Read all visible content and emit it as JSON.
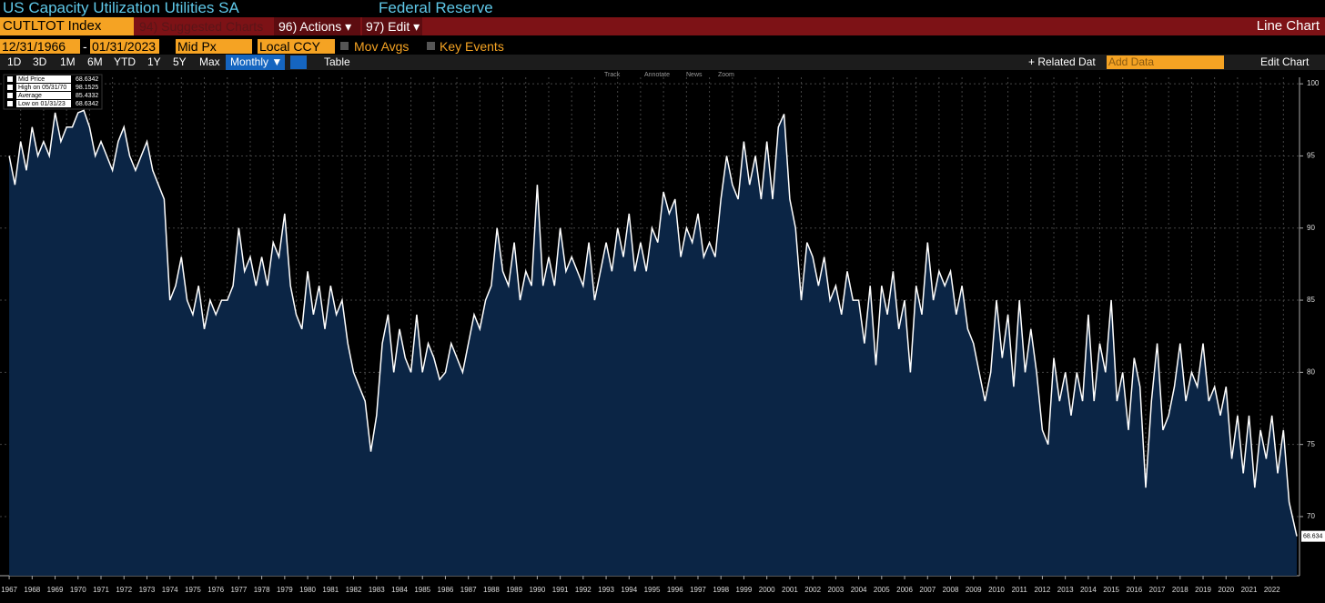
{
  "header": {
    "title": "US Capacity Utilization Utilities SA",
    "source": "Federal Reserve"
  },
  "toolbar": {
    "ticker": "CUTLTOT Index",
    "suggested": "94) Suggested Charts",
    "actions": "96) Actions ▾",
    "edit": "97) Edit ▾",
    "chart_type": "Line Chart"
  },
  "controls": {
    "start": "12/31/1966",
    "separator": "-",
    "end": "01/31/2023",
    "price": "Mid Px",
    "currency": "Local CCY",
    "mov_avgs": "Mov Avgs",
    "key_events": "Key Events"
  },
  "periods": [
    "1D",
    "3D",
    "1M",
    "6M",
    "YTD",
    "1Y",
    "5Y",
    "Max"
  ],
  "frequency": "Monthly ▼",
  "table": "Table",
  "related": "+ Related Dat",
  "add_data": "Add Data",
  "edit_chart": "Edit Chart",
  "chart_tools": [
    "Track",
    "Annotate",
    "News",
    "Zoom"
  ],
  "chart_data": {
    "type": "line",
    "grid": true,
    "fill": "#0b2545",
    "series": [
      {
        "name": "Mid Price",
        "color": "#ffffff",
        "values": [
          95,
          93,
          96,
          94,
          97,
          95,
          96,
          95,
          98,
          96,
          97,
          97,
          98,
          98.1525,
          97,
          95,
          96,
          95,
          94,
          96,
          97,
          95,
          94,
          95,
          96,
          94,
          93,
          92,
          85,
          86,
          88,
          85,
          84,
          86,
          83,
          85,
          84,
          85,
          85,
          86,
          90,
          87,
          88,
          86,
          88,
          86,
          89,
          88,
          91,
          86,
          84,
          83,
          87,
          84,
          86,
          83,
          86,
          84,
          85,
          82,
          80,
          79,
          78,
          74.5,
          77,
          82,
          84,
          80,
          83,
          81,
          80,
          84,
          80,
          82,
          81,
          79.5,
          80,
          82,
          81,
          80,
          82,
          84,
          83,
          85,
          86,
          90,
          87,
          86,
          89,
          85,
          87,
          86,
          93,
          86,
          88,
          86,
          90,
          87,
          88,
          87,
          86,
          89,
          85,
          87,
          89,
          87,
          90,
          88,
          91,
          87,
          89,
          87,
          90,
          89,
          92.5,
          91,
          92,
          88,
          90,
          89,
          91,
          88,
          89,
          88,
          92,
          95,
          93,
          92,
          96,
          93,
          95,
          92,
          96,
          92,
          97,
          97.9,
          92,
          90,
          85,
          89,
          88,
          86,
          88,
          85,
          86,
          84,
          87,
          85,
          85,
          82,
          86,
          80.5,
          86,
          84,
          87,
          83,
          85,
          80,
          86,
          84,
          89,
          85,
          87,
          86,
          87,
          84,
          86,
          83,
          82,
          80,
          78,
          80,
          85,
          81,
          84,
          79,
          85,
          80,
          83,
          80,
          76,
          75,
          81,
          78,
          80,
          77,
          80,
          78,
          84,
          78,
          82,
          80,
          85,
          78,
          80,
          76,
          81,
          79,
          72,
          78,
          82,
          76,
          77,
          79,
          82,
          78,
          80,
          79,
          82,
          78,
          79,
          77,
          79,
          74,
          77,
          73,
          77,
          72,
          76,
          74,
          77,
          73,
          76,
          71,
          68.6342
        ]
      }
    ],
    "x": [
      1967,
      1967.25,
      1967.5,
      1967.75,
      1968,
      1968.25,
      1968.5,
      1968.75,
      1969,
      1969.25,
      1969.5,
      1969.75,
      1970,
      1970.25,
      1970.5,
      1970.75,
      1971,
      1971.25,
      1971.5,
      1971.75,
      1972,
      1972.25,
      1972.5,
      1972.75,
      1973,
      1973.25,
      1973.5,
      1973.75,
      1974,
      1974.25,
      1974.5,
      1974.75,
      1975,
      1975.25,
      1975.5,
      1975.75,
      1976,
      1976.25,
      1976.5,
      1976.75,
      1977,
      1977.25,
      1977.5,
      1977.75,
      1978,
      1978.25,
      1978.5,
      1978.75,
      1979,
      1979.25,
      1979.5,
      1979.75,
      1980,
      1980.25,
      1980.5,
      1980.75,
      1981,
      1981.25,
      1981.5,
      1981.75,
      1982,
      1982.25,
      1982.5,
      1982.75,
      1983,
      1983.25,
      1983.5,
      1983.75,
      1984,
      1984.25,
      1984.5,
      1984.75,
      1985,
      1985.25,
      1985.5,
      1985.75,
      1986,
      1986.25,
      1986.5,
      1986.75,
      1987,
      1987.25,
      1987.5,
      1987.75,
      1988,
      1988.25,
      1988.5,
      1988.75,
      1989,
      1989.25,
      1989.5,
      1989.75,
      1990,
      1990.25,
      1990.5,
      1990.75,
      1991,
      1991.25,
      1991.5,
      1991.75,
      1992,
      1992.25,
      1992.5,
      1992.75,
      1993,
      1993.25,
      1993.5,
      1993.75,
      1994,
      1994.25,
      1994.5,
      1994.75,
      1995,
      1995.25,
      1995.5,
      1995.75,
      1996,
      1996.25,
      1996.5,
      1996.75,
      1997,
      1997.25,
      1997.5,
      1997.75,
      1998,
      1998.25,
      1998.5,
      1998.75,
      1999,
      1999.25,
      1999.5,
      1999.75,
      2000,
      2000.25,
      2000.5,
      2000.75,
      2001,
      2001.25,
      2001.5,
      2001.75,
      2002,
      2002.25,
      2002.5,
      2002.75,
      2003,
      2003.25,
      2003.5,
      2003.75,
      2004,
      2004.25,
      2004.5,
      2004.75,
      2005,
      2005.25,
      2005.5,
      2005.75,
      2006,
      2006.25,
      2006.5,
      2006.75,
      2007,
      2007.25,
      2007.5,
      2007.75,
      2008,
      2008.25,
      2008.5,
      2008.75,
      2009,
      2009.25,
      2009.5,
      2009.75,
      2010,
      2010.25,
      2010.5,
      2010.75,
      2011,
      2011.25,
      2011.5,
      2011.75,
      2012,
      2012.25,
      2012.5,
      2012.75,
      2013,
      2013.25,
      2013.5,
      2013.75,
      2014,
      2014.25,
      2014.5,
      2014.75,
      2015,
      2015.25,
      2015.5,
      2015.75,
      2016,
      2016.25,
      2016.5,
      2016.75,
      2017,
      2017.25,
      2017.5,
      2017.75,
      2018,
      2018.25,
      2018.5,
      2018.75,
      2019,
      2019.25,
      2019.5,
      2019.75,
      2020,
      2020.25,
      2020.5,
      2020.75,
      2021,
      2021.25,
      2021.5,
      2021.75,
      2022,
      2022.25,
      2022.5,
      2022.75,
      2023.08
    ],
    "xlim": [
      1966.6,
      2023.2
    ],
    "xticks": [
      1967,
      1968,
      1969,
      1970,
      1971,
      1972,
      1973,
      1974,
      1975,
      1976,
      1977,
      1978,
      1979,
      1980,
      1981,
      1982,
      1983,
      1984,
      1985,
      1986,
      1987,
      1988,
      1989,
      1990,
      1991,
      1992,
      1993,
      1994,
      1995,
      1996,
      1997,
      1998,
      1999,
      2000,
      2001,
      2002,
      2003,
      2004,
      2005,
      2006,
      2007,
      2008,
      2009,
      2010,
      2011,
      2012,
      2013,
      2014,
      2015,
      2016,
      2017,
      2018,
      2019,
      2020,
      2021,
      2022
    ],
    "ylim": [
      65.9,
      100.45
    ],
    "yticks": [
      70,
      75,
      80,
      85,
      90,
      95,
      100
    ],
    "last_price": 68.6342,
    "stats": [
      {
        "label": "High on 05/31/70",
        "value": 98.1525
      },
      {
        "label": "Average",
        "value": 85.4332
      },
      {
        "label": "Low on 01/31/23",
        "value": 68.6342
      }
    ],
    "last_label": 68.634
  }
}
